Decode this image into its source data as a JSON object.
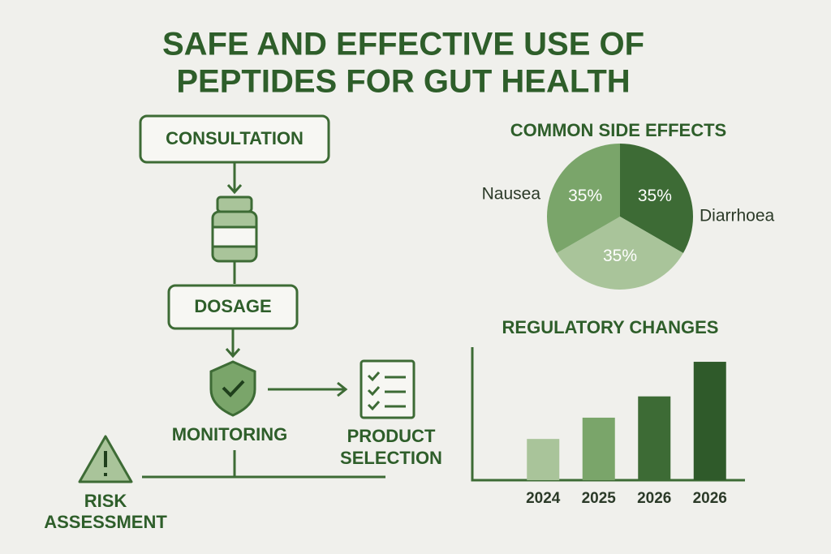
{
  "header": {
    "title_lines": [
      "SAFE AND EFFECTIVE USE OF",
      "PEPTIDES FOR GUT HEALTH"
    ]
  },
  "flow": {
    "nodes": [
      {
        "label": "CONSULTATION"
      },
      {
        "label": "DOSAGE"
      },
      {
        "label": "MONITORING"
      },
      {
        "label_lines": [
          "PRODUCT",
          "SELECTION"
        ]
      },
      {
        "label_lines": [
          "RISK",
          "ASSESSMENT"
        ]
      }
    ]
  },
  "chart_data": [
    {
      "type": "pie",
      "title": "COMMON SIDE EFFECTS",
      "categories": [
        "Diarrhoea",
        null,
        "Nausea"
      ],
      "values": [
        35,
        35,
        35
      ],
      "value_labels": [
        "35%",
        "35%",
        "35%"
      ],
      "colors": [
        "#3d6b35",
        "#a9c49a",
        "#7aa56a"
      ]
    },
    {
      "type": "bar",
      "title": "REGULATORY CHANGES",
      "categories": [
        "2024",
        "2025",
        "2026",
        "2026"
      ],
      "values": [
        31,
        47,
        63,
        89
      ],
      "colors": [
        "#a9c49a",
        "#7aa56a",
        "#3d6b35",
        "#2f5a2a"
      ],
      "ylim": [
        0,
        100
      ]
    }
  ]
}
